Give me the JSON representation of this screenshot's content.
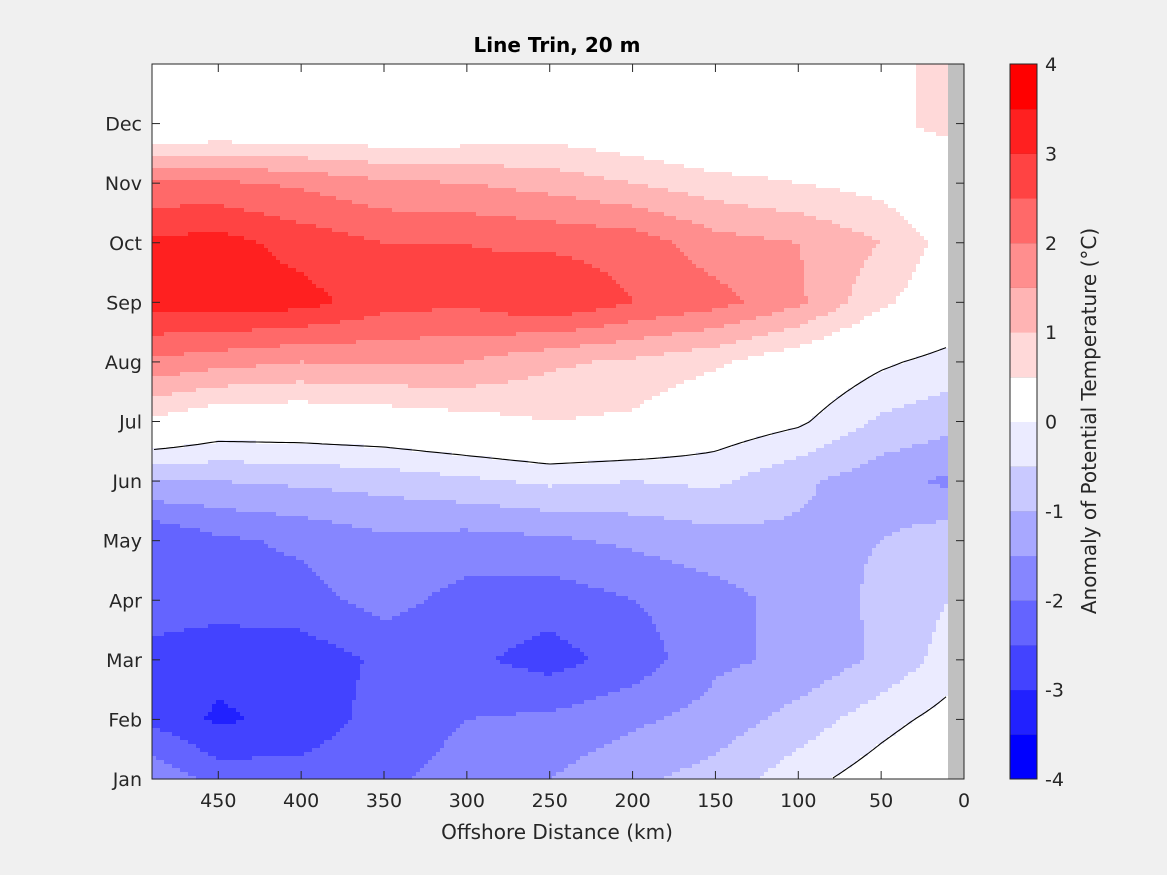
{
  "chart_data": {
    "type": "heatmap",
    "subtype": "filled-contour",
    "title": "Line Trin, 20 m",
    "xlabel": "Offshore Distance (km)",
    "colorbar_label": "Anomaly of Potential Temperature (°C)",
    "x_ticks": [
      450,
      400,
      350,
      300,
      250,
      200,
      150,
      100,
      50,
      0
    ],
    "xlim": [
      490,
      0
    ],
    "x_direction": "reversed",
    "y_ticks": [
      "Jan",
      "Feb",
      "Mar",
      "Apr",
      "May",
      "Jun",
      "Jul",
      "Aug",
      "Sep",
      "Oct",
      "Nov",
      "Dec"
    ],
    "ylim": [
      1,
      13
    ],
    "colorbar_ticks": [
      -4,
      -3,
      -2,
      -1,
      0,
      1,
      2,
      3,
      4
    ],
    "clim": [
      -4,
      4
    ],
    "contour_interval": 0.5,
    "zero_contour": "black line",
    "no_data_strip_x": [
      10,
      0
    ],
    "x": [
      490,
      450,
      400,
      350,
      300,
      250,
      200,
      150,
      100,
      50,
      10
    ],
    "months": [
      1,
      2,
      3,
      4,
      5,
      6,
      7,
      8,
      9,
      10,
      11,
      12
    ],
    "values": [
      [
        -1.6,
        -2.2,
        -2.3,
        -2.1,
        -1.8,
        -1.5,
        -1.1,
        -0.8,
        -0.2,
        0.3,
        0.7
      ],
      [
        -2.6,
        -3.1,
        -2.8,
        -2.3,
        -2.0,
        -1.9,
        -1.6,
        -1.3,
        -0.8,
        -0.2,
        0.2
      ],
      [
        -2.7,
        -2.8,
        -2.8,
        -2.4,
        -2.4,
        -2.7,
        -2.3,
        -1.6,
        -1.4,
        -0.9,
        -0.3
      ],
      [
        -2.2,
        -2.3,
        -2.2,
        -1.8,
        -2.2,
        -2.3,
        -2.0,
        -1.7,
        -1.3,
        -0.9,
        -0.5
      ],
      [
        -2.5,
        -2.1,
        -1.9,
        -1.6,
        -1.7,
        -1.6,
        -1.4,
        -1.2,
        -1.1,
        -1.0,
        -0.7
      ],
      [
        -1.0,
        -1.0,
        -0.9,
        -0.8,
        -0.6,
        -0.4,
        -0.5,
        -0.4,
        -0.9,
        -1.3,
        -1.6
      ],
      [
        0.9,
        0.5,
        0.5,
        0.6,
        0.8,
        1.0,
        0.9,
        0.4,
        0.1,
        -0.6,
        -0.8
      ],
      [
        2.4,
        2.2,
        2.0,
        2.1,
        2.0,
        1.6,
        1.4,
        1.1,
        0.6,
        0.1,
        -0.2
      ],
      [
        3.7,
        3.8,
        3.7,
        3.2,
        3.1,
        3.5,
        3.0,
        2.7,
        2.1,
        1.1,
        0.6
      ],
      [
        3.6,
        3.7,
        3.3,
        3.0,
        3.0,
        2.9,
        2.8,
        2.2,
        2.0,
        1.5,
        0.8
      ],
      [
        2.6,
        2.6,
        2.4,
        2.1,
        2.0,
        1.8,
        1.5,
        1.2,
        1.0,
        0.8,
        0.3
      ],
      [
        0.2,
        0.3,
        0.3,
        0.3,
        0.4,
        0.6,
        0.4,
        0.1,
        0.3,
        0.8,
        1.2
      ]
    ],
    "colors": {
      "figure_background": "#f0f0f0",
      "no_data": "#c0c0c0",
      "zero_contour": "#000000",
      "levels": [
        "#0000ff",
        "#2121ff",
        "#4343ff",
        "#6464ff",
        "#8686ff",
        "#a8a8ff",
        "#c9c9ff",
        "#ebebff",
        "#ffffff",
        "#ffffff",
        "#ffd9d9",
        "#ffb4b4",
        "#ff8e8e",
        "#ff6969",
        "#ff4343",
        "#ff2020",
        "#ff0000"
      ]
    }
  }
}
